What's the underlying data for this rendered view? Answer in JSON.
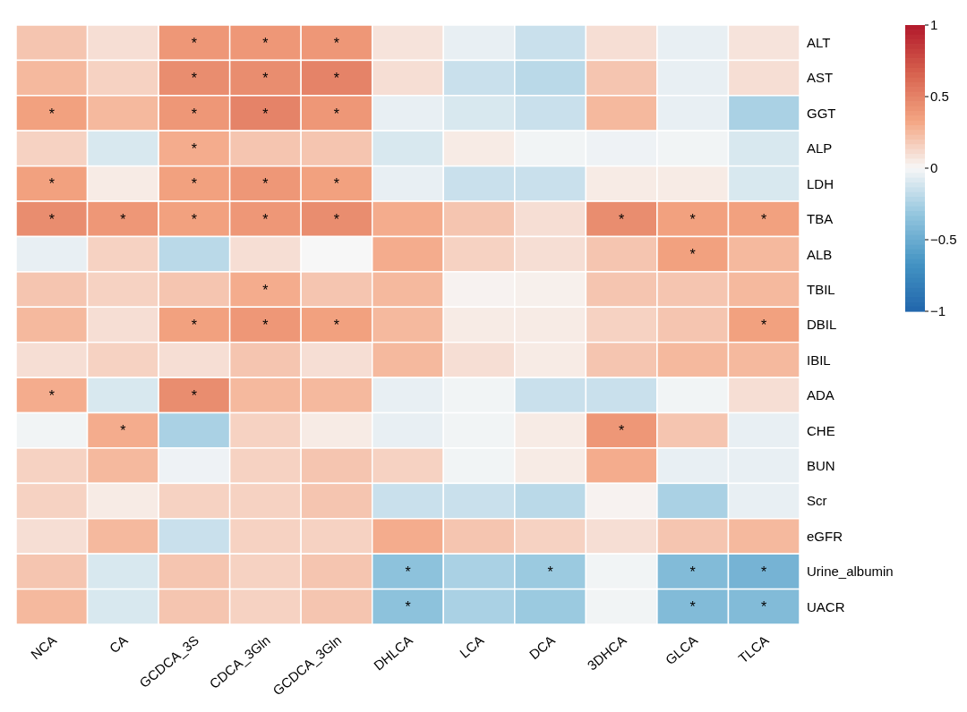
{
  "chart_data": {
    "type": "heatmap",
    "categories": [
      "NCA",
      "CA",
      "GCDCA_3S",
      "CDCA_3Gln",
      "GCDCA_3Gln",
      "DHLCA",
      "LCA",
      "DCA",
      "3DHCA",
      "GLCA",
      "TLCA"
    ],
    "y_categories": [
      "ALT",
      "AST",
      "GGT",
      "ALP",
      "LDH",
      "TBA",
      "ALB",
      "TBIL",
      "DBIL",
      "IBIL",
      "ADA",
      "CHE",
      "BUN",
      "Scr",
      "eGFR",
      "Urine_albumin",
      "UACR"
    ],
    "cells": [
      [
        0.2,
        0.1,
        0.4,
        0.4,
        0.4,
        0.08,
        -0.05,
        -0.15,
        0.1,
        -0.05,
        0.08
      ],
      [
        0.25,
        0.15,
        0.45,
        0.45,
        0.5,
        0.1,
        -0.15,
        -0.2,
        0.2,
        -0.05,
        0.1
      ],
      [
        0.35,
        0.25,
        0.4,
        0.5,
        0.4,
        -0.05,
        -0.1,
        -0.15,
        0.25,
        -0.05,
        -0.25
      ],
      [
        0.15,
        -0.1,
        0.3,
        0.2,
        0.2,
        -0.1,
        0.05,
        -0.02,
        -0.03,
        -0.02,
        -0.1
      ],
      [
        0.35,
        0.05,
        0.35,
        0.4,
        0.35,
        -0.05,
        -0.15,
        -0.15,
        0.05,
        0.05,
        -0.1
      ],
      [
        0.45,
        0.4,
        0.35,
        0.4,
        0.45,
        0.3,
        0.2,
        0.1,
        0.45,
        0.35,
        0.35
      ],
      [
        -0.05,
        0.15,
        -0.2,
        0.1,
        0.0,
        0.3,
        0.15,
        0.1,
        0.2,
        0.35,
        0.25
      ],
      [
        0.2,
        0.15,
        0.2,
        0.3,
        0.2,
        0.25,
        0.02,
        0.03,
        0.2,
        0.2,
        0.25
      ],
      [
        0.25,
        0.1,
        0.35,
        0.4,
        0.35,
        0.25,
        0.05,
        0.05,
        0.15,
        0.2,
        0.35
      ],
      [
        0.1,
        0.15,
        0.1,
        0.2,
        0.1,
        0.25,
        0.1,
        0.05,
        0.2,
        0.25,
        0.25
      ],
      [
        0.3,
        -0.1,
        0.45,
        0.25,
        0.25,
        -0.05,
        -0.02,
        -0.15,
        -0.15,
        -0.02,
        0.1
      ],
      [
        -0.02,
        0.3,
        -0.25,
        0.15,
        0.05,
        -0.05,
        -0.02,
        0.05,
        0.4,
        0.2,
        -0.05
      ],
      [
        0.15,
        0.25,
        -0.03,
        0.15,
        0.2,
        0.15,
        -0.02,
        0.05,
        0.3,
        -0.05,
        -0.05
      ],
      [
        0.15,
        0.05,
        0.15,
        0.15,
        0.2,
        -0.15,
        -0.15,
        -0.2,
        0.02,
        -0.25,
        -0.05
      ],
      [
        0.1,
        0.25,
        -0.15,
        0.15,
        0.15,
        0.3,
        0.2,
        0.15,
        0.1,
        0.2,
        0.25
      ],
      [
        0.2,
        -0.1,
        0.2,
        0.15,
        0.2,
        -0.35,
        -0.25,
        -0.3,
        -0.02,
        -0.4,
        -0.45
      ],
      [
        0.25,
        -0.1,
        0.2,
        0.15,
        0.2,
        -0.35,
        -0.25,
        -0.3,
        -0.02,
        -0.4,
        -0.4
      ]
    ],
    "cell_labels": [
      [
        null,
        null,
        "*",
        "*",
        "*",
        null,
        null,
        null,
        null,
        null,
        null
      ],
      [
        null,
        null,
        "*",
        "*",
        "*",
        null,
        null,
        null,
        null,
        null,
        null
      ],
      [
        "*",
        null,
        "*",
        "*",
        "*",
        null,
        null,
        null,
        null,
        null,
        null
      ],
      [
        null,
        null,
        "*",
        null,
        null,
        null,
        null,
        null,
        null,
        null,
        null
      ],
      [
        "*",
        null,
        "*",
        "*",
        "*",
        null,
        null,
        null,
        null,
        null,
        null
      ],
      [
        "*",
        "*",
        "*",
        "*",
        "*",
        null,
        null,
        null,
        "*",
        "*",
        "*"
      ],
      [
        null,
        null,
        null,
        null,
        null,
        null,
        null,
        null,
        null,
        "*",
        null
      ],
      [
        null,
        null,
        null,
        "*",
        null,
        null,
        null,
        null,
        null,
        null,
        null
      ],
      [
        null,
        null,
        "*",
        "*",
        "*",
        null,
        null,
        null,
        null,
        null,
        "*"
      ],
      [
        null,
        null,
        null,
        null,
        null,
        null,
        null,
        null,
        null,
        null,
        null
      ],
      [
        "*",
        null,
        "*",
        null,
        null,
        null,
        null,
        null,
        null,
        null,
        null
      ],
      [
        null,
        "*",
        null,
        null,
        null,
        null,
        null,
        null,
        "*",
        null,
        null
      ],
      [
        null,
        null,
        null,
        null,
        null,
        null,
        null,
        null,
        null,
        null,
        null
      ],
      [
        null,
        null,
        null,
        null,
        null,
        null,
        null,
        null,
        null,
        null,
        null
      ],
      [
        null,
        null,
        null,
        null,
        null,
        null,
        null,
        null,
        null,
        null,
        null
      ],
      [
        null,
        null,
        null,
        null,
        null,
        "*",
        null,
        "*",
        null,
        "*",
        "*"
      ],
      [
        null,
        null,
        null,
        null,
        null,
        "*",
        null,
        null,
        null,
        "*",
        "*"
      ]
    ],
    "clim": [
      -1,
      1
    ],
    "cticks": [
      1,
      0.5,
      0,
      {
        "value": -0.5,
        "label": "−0.5"
      },
      {
        "value": -1,
        "label": "−1"
      }
    ]
  }
}
